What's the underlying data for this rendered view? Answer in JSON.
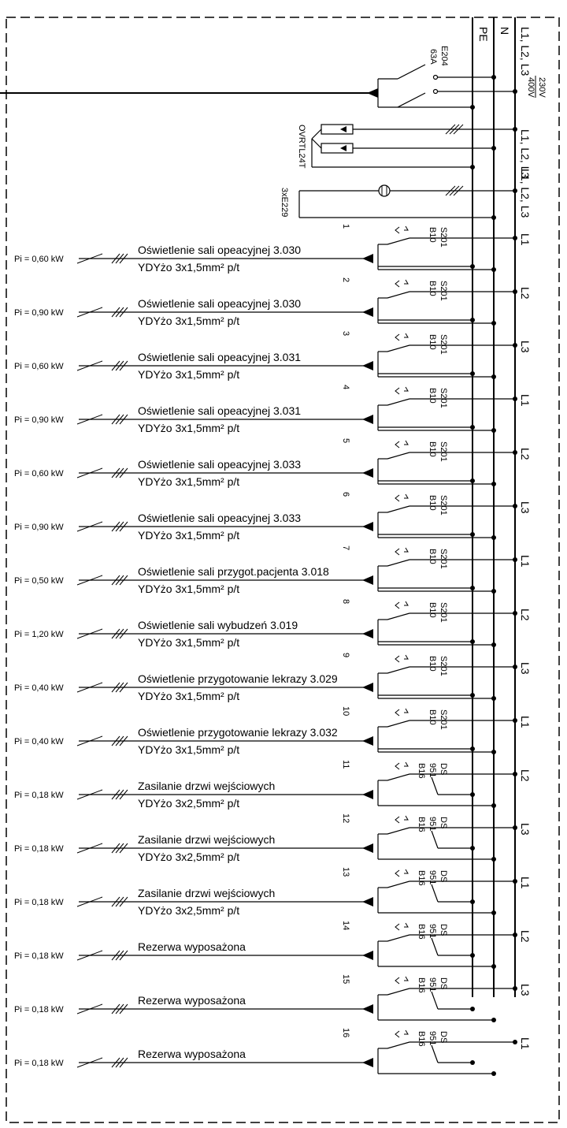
{
  "rails": {
    "l123": "L1, L2, L3",
    "n": "N",
    "pe": "PE",
    "voltage_top": "230V",
    "voltage_bottom": "400V"
  },
  "main_switch": {
    "name": "E204",
    "rating": "63A"
  },
  "surge_protector": {
    "name": "OVRTL24T",
    "phase_label": "L1, L2, L3"
  },
  "indicators": {
    "name": "3xE229",
    "phase_label": "L1, L2, L3"
  },
  "circuits": [
    {
      "num": "1",
      "device": [
        "S201",
        "B10"
      ],
      "phase": "L1",
      "desc": "Oświetlenie sali opeacyjnej 3.030",
      "cable": "YDYżo 3x1,5mm² p/t",
      "power": "Pi = 0,60 kW",
      "rcbo": false
    },
    {
      "num": "2",
      "device": [
        "S201",
        "B10"
      ],
      "phase": "L2",
      "desc": "Oświetlenie sali opeacyjnej 3.030",
      "cable": "YDYżo 3x1,5mm² p/t",
      "power": "Pi = 0,90 kW",
      "rcbo": false
    },
    {
      "num": "3",
      "device": [
        "S201",
        "B10"
      ],
      "phase": "L3",
      "desc": "Oświetlenie sali opeacyjnej 3.031",
      "cable": "YDYżo 3x1,5mm² p/t",
      "power": "Pi = 0,60 kW",
      "rcbo": false
    },
    {
      "num": "4",
      "device": [
        "S201",
        "B10"
      ],
      "phase": "L1",
      "desc": "Oświetlenie sali opeacyjnej 3.031",
      "cable": "YDYżo 3x1,5mm² p/t",
      "power": "Pi = 0,90 kW",
      "rcbo": false
    },
    {
      "num": "5",
      "device": [
        "S201",
        "B10"
      ],
      "phase": "L2",
      "desc": "Oświetlenie sali opeacyjnej 3.033",
      "cable": "YDYżo 3x1,5mm² p/t",
      "power": "Pi = 0,60 kW",
      "rcbo": false
    },
    {
      "num": "6",
      "device": [
        "S201",
        "B10"
      ],
      "phase": "L3",
      "desc": "Oświetlenie sali opeacyjnej 3.033",
      "cable": "YDYżo 3x1,5mm² p/t",
      "power": "Pi = 0,90 kW",
      "rcbo": false
    },
    {
      "num": "7",
      "device": [
        "S201",
        "B10"
      ],
      "phase": "L1",
      "desc": "Oświetlenie sali przygot.pacjenta 3.018",
      "cable": "YDYżo 3x1,5mm² p/t",
      "power": "Pi = 0,50 kW",
      "rcbo": false
    },
    {
      "num": "8",
      "device": [
        "S201",
        "B10"
      ],
      "phase": "L2",
      "desc": "Oświetlenie sali wybudzeń 3.019",
      "cable": "YDYżo 3x1,5mm² p/t",
      "power": "Pi = 1,20 kW",
      "rcbo": false
    },
    {
      "num": "9",
      "device": [
        "S201",
        "B10"
      ],
      "phase": "L3",
      "desc": "Oświetlenie przygotowanie lekrazy 3.029",
      "cable": "YDYżo 3x1,5mm² p/t",
      "power": "Pi = 0,40 kW",
      "rcbo": false
    },
    {
      "num": "10",
      "device": [
        "S201",
        "B10"
      ],
      "phase": "L1",
      "desc": "Oświetlenie przygotowanie lekrazy 3.032",
      "cable": "YDYżo 3x1,5mm² p/t",
      "power": "Pi = 0,40 kW",
      "rcbo": false
    },
    {
      "num": "11",
      "device": [
        "DS",
        "951",
        "B16"
      ],
      "phase": "L2",
      "desc": "Zasilanie drzwi wejściowych",
      "cable": "YDYżo 3x2,5mm² p/t",
      "power": "Pi = 0,18 kW",
      "rcbo": true
    },
    {
      "num": "12",
      "device": [
        "DS",
        "951",
        "B16"
      ],
      "phase": "L3",
      "desc": "Zasilanie drzwi wejściowych",
      "cable": "YDYżo 3x2,5mm² p/t",
      "power": "Pi = 0,18 kW",
      "rcbo": true
    },
    {
      "num": "13",
      "device": [
        "DS",
        "951",
        "B16"
      ],
      "phase": "L1",
      "desc": "Zasilanie drzwi wejściowych",
      "cable": "YDYżo 3x2,5mm² p/t",
      "power": "Pi = 0,18 kW",
      "rcbo": true
    },
    {
      "num": "14",
      "device": [
        "DS",
        "951",
        "B16"
      ],
      "phase": "L2",
      "desc": "Rezerwa wyposażona",
      "cable": "",
      "power": "Pi = 0,18 kW",
      "rcbo": true
    },
    {
      "num": "15",
      "device": [
        "DS",
        "951",
        "B16"
      ],
      "phase": "L3",
      "desc": "Rezerwa wyposażona",
      "cable": "",
      "power": "Pi = 0,18 kW",
      "rcbo": true
    },
    {
      "num": "16",
      "device": [
        "DS",
        "951",
        "B16"
      ],
      "phase": "L1",
      "desc": "Rezerwa wyposażona",
      "cable": "",
      "power": "Pi = 0,18 kW",
      "rcbo": true
    }
  ]
}
